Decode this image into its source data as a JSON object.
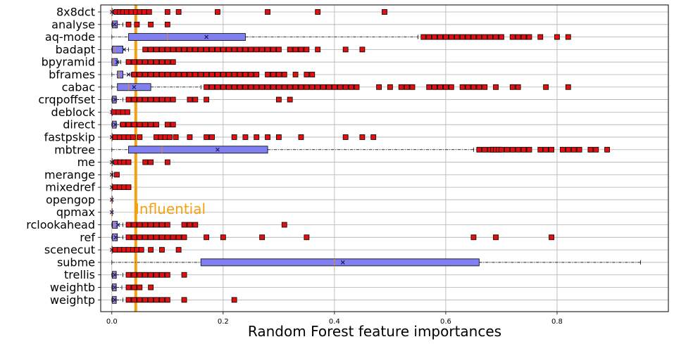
{
  "chart_data": {
    "type": "boxplot",
    "orientation": "horizontal",
    "xlabel": "Random Forest feature importances",
    "xlim": [
      -0.02,
      1.0
    ],
    "xticks": [
      "0.0",
      "0.2",
      "0.4",
      "0.6",
      "0.8"
    ],
    "grid": true,
    "colors": {
      "box": "#8080f0",
      "outlier": "#e01010",
      "threshold": "#f5a010"
    },
    "threshold": {
      "value": 0.043,
      "label": "Influential"
    },
    "features": [
      {
        "name": "8x8dct",
        "q1": 0.0,
        "median": 0.0,
        "mean": 0.0,
        "q3": 0.0,
        "wlo": 0.0,
        "whi": 0.002,
        "outliers": [
          0.008,
          0.014,
          0.02,
          0.027,
          0.035,
          0.043,
          0.05,
          0.058,
          0.067,
          0.1,
          0.12,
          0.19,
          0.28,
          0.37,
          0.49
        ]
      },
      {
        "name": "analyse",
        "q1": 0.001,
        "median": 0.004,
        "mean": 0.005,
        "q3": 0.01,
        "wlo": 0.0,
        "whi": 0.02,
        "outliers": [
          0.03,
          0.045,
          0.07,
          0.1
        ]
      },
      {
        "name": "aq-mode",
        "q1": 0.03,
        "median": 0.1,
        "mean": 0.17,
        "q3": 0.24,
        "wlo": 0.0,
        "whi": 0.55,
        "outliers": [
          0.56,
          0.57,
          0.58,
          0.59,
          0.6,
          0.61,
          0.62,
          0.63,
          0.64,
          0.65,
          0.66,
          0.67,
          0.68,
          0.69,
          0.7,
          0.72,
          0.73,
          0.74,
          0.75,
          0.77,
          0.8,
          0.82
        ]
      },
      {
        "name": "badapt",
        "q1": 0.001,
        "median": 0.006,
        "mean": 0.022,
        "q3": 0.02,
        "wlo": 0.0,
        "whi": 0.03,
        "outliers": [
          0.06,
          0.07,
          0.08,
          0.09,
          0.1,
          0.11,
          0.12,
          0.13,
          0.14,
          0.15,
          0.16,
          0.17,
          0.18,
          0.19,
          0.2,
          0.21,
          0.22,
          0.23,
          0.24,
          0.25,
          0.26,
          0.27,
          0.28,
          0.29,
          0.3,
          0.32,
          0.33,
          0.34,
          0.35,
          0.37,
          0.42,
          0.45
        ]
      },
      {
        "name": "bpyramid",
        "q1": 0.0,
        "median": 0.003,
        "mean": 0.01,
        "q3": 0.01,
        "wlo": 0.0,
        "whi": 0.016,
        "outliers": [
          0.03,
          0.04,
          0.05,
          0.06,
          0.07,
          0.08,
          0.09,
          0.1,
          0.11
        ]
      },
      {
        "name": "bframes",
        "q1": 0.01,
        "median": 0.013,
        "mean": 0.03,
        "q3": 0.02,
        "wlo": 0.0,
        "whi": 0.035,
        "outliers": [
          0.04,
          0.05,
          0.06,
          0.07,
          0.08,
          0.09,
          0.1,
          0.11,
          0.12,
          0.13,
          0.14,
          0.15,
          0.16,
          0.17,
          0.18,
          0.19,
          0.2,
          0.21,
          0.22,
          0.23,
          0.24,
          0.25,
          0.26,
          0.28,
          0.29,
          0.3,
          0.31,
          0.33,
          0.35,
          0.36
        ]
      },
      {
        "name": "cabac",
        "q1": 0.01,
        "median": 0.03,
        "mean": 0.04,
        "q3": 0.07,
        "wlo": 0.0,
        "whi": 0.16,
        "outliers": [
          0.17,
          0.18,
          0.19,
          0.2,
          0.21,
          0.22,
          0.23,
          0.24,
          0.25,
          0.26,
          0.27,
          0.28,
          0.29,
          0.3,
          0.31,
          0.32,
          0.33,
          0.34,
          0.35,
          0.36,
          0.37,
          0.38,
          0.39,
          0.4,
          0.41,
          0.42,
          0.43,
          0.44,
          0.48,
          0.5,
          0.52,
          0.53,
          0.54,
          0.57,
          0.58,
          0.59,
          0.6,
          0.61,
          0.63,
          0.64,
          0.65,
          0.66,
          0.67,
          0.69,
          0.72,
          0.73,
          0.78,
          0.82
        ]
      },
      {
        "name": "crqpoffset",
        "q1": 0.001,
        "median": 0.004,
        "mean": 0.006,
        "q3": 0.008,
        "wlo": 0.0,
        "whi": 0.02,
        "outliers": [
          0.03,
          0.04,
          0.05,
          0.06,
          0.07,
          0.08,
          0.09,
          0.1,
          0.11,
          0.14,
          0.15,
          0.17,
          0.3,
          0.32
        ]
      },
      {
        "name": "deblock",
        "q1": 0.0,
        "median": 0.0,
        "mean": 0.0,
        "q3": 0.0,
        "wlo": 0.0,
        "whi": 0.002,
        "outliers": [
          0.004,
          0.012,
          0.02,
          0.028
        ]
      },
      {
        "name": "direct",
        "q1": 0.001,
        "median": 0.004,
        "mean": 0.006,
        "q3": 0.008,
        "wlo": 0.0,
        "whi": 0.015,
        "outliers": [
          0.02,
          0.03,
          0.04,
          0.05,
          0.06,
          0.07,
          0.08,
          0.1,
          0.11
        ]
      },
      {
        "name": "fastpskip",
        "q1": 0.0,
        "median": 0.0,
        "mean": 0.0,
        "q3": 0.0,
        "wlo": 0.0,
        "whi": 0.002,
        "outliers": [
          0.006,
          0.014,
          0.022,
          0.03,
          0.038,
          0.05,
          0.08,
          0.088,
          0.096,
          0.104,
          0.115,
          0.14,
          0.17,
          0.18,
          0.22,
          0.24,
          0.26,
          0.28,
          0.3,
          0.34,
          0.42,
          0.45,
          0.47
        ]
      },
      {
        "name": "mbtree",
        "q1": 0.03,
        "median": 0.09,
        "mean": 0.19,
        "q3": 0.28,
        "wlo": 0.0,
        "whi": 0.65,
        "outliers": [
          0.66,
          0.67,
          0.68,
          0.685,
          0.69,
          0.695,
          0.7,
          0.71,
          0.72,
          0.73,
          0.74,
          0.75,
          0.77,
          0.78,
          0.79,
          0.81,
          0.82,
          0.83,
          0.84,
          0.86,
          0.87,
          0.89
        ]
      },
      {
        "name": "me",
        "q1": 0.0,
        "median": 0.0,
        "mean": 0.0,
        "q3": 0.0,
        "wlo": 0.0,
        "whi": 0.002,
        "outliers": [
          0.008,
          0.015,
          0.022,
          0.03,
          0.06,
          0.07,
          0.1
        ]
      },
      {
        "name": "merange",
        "q1": 0.0,
        "median": 0.0,
        "mean": 0.0,
        "q3": 0.0,
        "wlo": 0.0,
        "whi": 0.002,
        "outliers": [
          0.009
        ]
      },
      {
        "name": "mixedref",
        "q1": 0.0,
        "median": 0.0,
        "mean": 0.0,
        "q3": 0.0,
        "wlo": 0.0,
        "whi": 0.002,
        "outliers": [
          0.006,
          0.014,
          0.022,
          0.03
        ]
      },
      {
        "name": "opengop",
        "q1": 0.0,
        "median": 0.0,
        "mean": 0.0,
        "q3": 0.0,
        "wlo": 0.0,
        "whi": 0.0,
        "outliers": []
      },
      {
        "name": "qpmax",
        "q1": 0.0,
        "median": 0.0,
        "mean": 0.0,
        "q3": 0.0,
        "wlo": 0.0,
        "whi": 0.0,
        "outliers": []
      },
      {
        "name": "rclookahead",
        "q1": 0.001,
        "median": 0.004,
        "mean": 0.011,
        "q3": 0.01,
        "wlo": 0.0,
        "whi": 0.02,
        "outliers": [
          0.03,
          0.04,
          0.05,
          0.06,
          0.07,
          0.08,
          0.09,
          0.1,
          0.13,
          0.14,
          0.15,
          0.31
        ]
      },
      {
        "name": "ref",
        "q1": 0.001,
        "median": 0.005,
        "mean": 0.007,
        "q3": 0.01,
        "wlo": 0.0,
        "whi": 0.02,
        "outliers": [
          0.03,
          0.04,
          0.05,
          0.06,
          0.07,
          0.08,
          0.09,
          0.1,
          0.11,
          0.12,
          0.13,
          0.17,
          0.2,
          0.27,
          0.35,
          0.65,
          0.69,
          0.79
        ]
      },
      {
        "name": "scenecut",
        "q1": 0.0,
        "median": 0.0,
        "mean": 0.0,
        "q3": 0.0,
        "wlo": 0.0,
        "whi": 0.002,
        "outliers": [
          0.006,
          0.014,
          0.022,
          0.03,
          0.038,
          0.045,
          0.053,
          0.07,
          0.09,
          0.12
        ]
      },
      {
        "name": "subme",
        "q1": 0.16,
        "median": 0.4,
        "mean": 0.415,
        "q3": 0.66,
        "wlo": 0.0,
        "whi": 0.95,
        "outliers": []
      },
      {
        "name": "trellis",
        "q1": 0.001,
        "median": 0.004,
        "mean": 0.005,
        "q3": 0.008,
        "wlo": 0.0,
        "whi": 0.02,
        "outliers": [
          0.03,
          0.04,
          0.05,
          0.06,
          0.07,
          0.08,
          0.09,
          0.1,
          0.13
        ]
      },
      {
        "name": "weightb",
        "q1": 0.001,
        "median": 0.004,
        "mean": 0.005,
        "q3": 0.008,
        "wlo": 0.0,
        "whi": 0.018,
        "outliers": [
          0.03,
          0.04,
          0.05,
          0.07
        ]
      },
      {
        "name": "weightp",
        "q1": 0.001,
        "median": 0.004,
        "mean": 0.005,
        "q3": 0.008,
        "wlo": 0.0,
        "whi": 0.02,
        "outliers": [
          0.03,
          0.04,
          0.05,
          0.06,
          0.07,
          0.08,
          0.09,
          0.1,
          0.13,
          0.22
        ]
      }
    ]
  }
}
